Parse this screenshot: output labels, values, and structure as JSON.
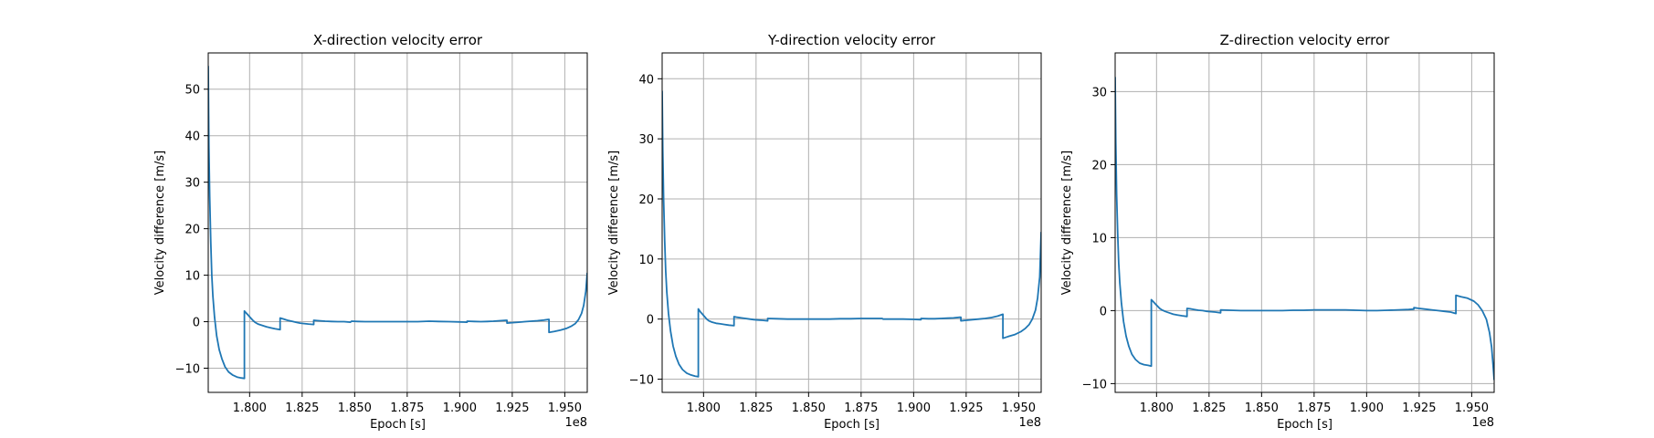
{
  "colors": {
    "line": "#1f77b4",
    "grid": "#b0b0b0",
    "axes": "#000000"
  },
  "chart_data": [
    {
      "type": "line",
      "title": "X-direction velocity error",
      "xlabel": "Epoch [s]",
      "ylabel": "Velocity difference [m/s]",
      "x_multiplier_label": "1e8",
      "grid": true,
      "xlim": [
        1.7803,
        1.9607
      ],
      "ylim": [
        -15.2,
        57.8
      ],
      "xticks": [
        1.8,
        1.825,
        1.85,
        1.875,
        1.9,
        1.925,
        1.95
      ],
      "xtick_labels": [
        "1.800",
        "1.825",
        "1.850",
        "1.875",
        "1.900",
        "1.925",
        "1.950"
      ],
      "yticks": [
        -10,
        0,
        10,
        20,
        30,
        40,
        50
      ],
      "ytick_labels": [
        "−10",
        "0",
        "10",
        "20",
        "30",
        "40",
        "50"
      ],
      "series": [
        {
          "x": [
            1.7803,
            1.7806,
            1.781,
            1.7815,
            1.782,
            1.7825,
            1.7833,
            1.7843,
            1.7855,
            1.7868,
            1.7883,
            1.79,
            1.792,
            1.794,
            1.796,
            1.7975,
            1.7975,
            1.7985,
            1.7995,
            1.8005,
            1.8015,
            1.8025,
            1.804,
            1.806,
            1.808,
            1.81,
            1.812,
            1.8145,
            1.8145,
            1.816,
            1.818,
            1.82,
            1.822,
            1.824,
            1.826,
            1.828,
            1.8305,
            1.8305,
            1.833,
            1.836,
            1.839,
            1.842,
            1.845,
            1.848,
            1.8485,
            1.8515,
            1.855,
            1.86,
            1.865,
            1.87,
            1.875,
            1.88,
            1.8855,
            1.8855,
            1.89,
            1.895,
            1.9,
            1.9035,
            1.9035,
            1.907,
            1.91,
            1.913,
            1.916,
            1.919,
            1.922,
            1.9225,
            1.9225,
            1.925,
            1.928,
            1.931,
            1.934,
            1.937,
            1.94,
            1.9425,
            1.9425,
            1.945,
            1.948,
            1.951,
            1.953,
            1.955,
            1.9565,
            1.958,
            1.959,
            1.96,
            1.9607
          ],
          "y": [
            55,
            38,
            27,
            17,
            10,
            5.5,
            1,
            -3,
            -6,
            -8,
            -9.7,
            -10.8,
            -11.5,
            -11.9,
            -12.1,
            -12.2,
            2.3,
            1.8,
            1.3,
            0.8,
            0.3,
            -0.1,
            -0.5,
            -0.8,
            -1.1,
            -1.3,
            -1.5,
            -1.7,
            0.8,
            0.6,
            0.3,
            0.1,
            -0.1,
            -0.3,
            -0.4,
            -0.5,
            -0.6,
            0.3,
            0.2,
            0.1,
            0.05,
            0,
            0,
            -0.1,
            0.1,
            0.05,
            0,
            0,
            0,
            0,
            0,
            0,
            0.1,
            0.1,
            0.05,
            0,
            -0.05,
            -0.1,
            0.1,
            0.05,
            0,
            0.05,
            0.1,
            0.2,
            0.3,
            0.3,
            -0.3,
            -0.2,
            -0.1,
            0,
            0.1,
            0.2,
            0.35,
            0.5,
            -2.3,
            -2.1,
            -1.8,
            -1.4,
            -1,
            -0.4,
            0.4,
            1.8,
            3.5,
            6.5,
            10.5
          ]
        }
      ]
    },
    {
      "type": "line",
      "title": "Y-direction velocity error",
      "xlabel": "Epoch [s]",
      "ylabel": "Velocity difference [m/s]",
      "x_multiplier_label": "1e8",
      "grid": true,
      "xlim": [
        1.7803,
        1.9607
      ],
      "ylim": [
        -12.2,
        44.3
      ],
      "xticks": [
        1.8,
        1.825,
        1.85,
        1.875,
        1.9,
        1.925,
        1.95
      ],
      "xtick_labels": [
        "1.800",
        "1.825",
        "1.850",
        "1.875",
        "1.900",
        "1.925",
        "1.950"
      ],
      "yticks": [
        -10,
        0,
        10,
        20,
        30,
        40
      ],
      "ytick_labels": [
        "−10",
        "0",
        "10",
        "20",
        "30",
        "40"
      ],
      "series": [
        {
          "x": [
            1.7803,
            1.7806,
            1.781,
            1.7815,
            1.782,
            1.7825,
            1.7833,
            1.7843,
            1.7855,
            1.7868,
            1.7883,
            1.79,
            1.792,
            1.794,
            1.796,
            1.7975,
            1.7975,
            1.7985,
            1.7995,
            1.8005,
            1.8015,
            1.8025,
            1.804,
            1.806,
            1.808,
            1.81,
            1.812,
            1.8145,
            1.8145,
            1.816,
            1.818,
            1.82,
            1.822,
            1.824,
            1.826,
            1.828,
            1.8305,
            1.8305,
            1.835,
            1.84,
            1.845,
            1.85,
            1.855,
            1.86,
            1.865,
            1.87,
            1.875,
            1.88,
            1.885,
            1.8855,
            1.89,
            1.895,
            1.9,
            1.9035,
            1.9035,
            1.907,
            1.91,
            1.913,
            1.916,
            1.919,
            1.922,
            1.9225,
            1.9225,
            1.925,
            1.928,
            1.931,
            1.934,
            1.937,
            1.94,
            1.9425,
            1.9425,
            1.945,
            1.948,
            1.951,
            1.953,
            1.955,
            1.9565,
            1.958,
            1.959,
            1.96,
            1.9607
          ],
          "y": [
            38,
            28,
            20,
            13,
            8,
            4.5,
            1,
            -2,
            -4.5,
            -6.2,
            -7.5,
            -8.4,
            -9,
            -9.3,
            -9.5,
            -9.6,
            1.7,
            1.2,
            0.8,
            0.4,
            0,
            -0.3,
            -0.5,
            -0.7,
            -0.8,
            -0.9,
            -1,
            -1.1,
            0.4,
            0.3,
            0.2,
            0.1,
            0,
            -0.1,
            -0.15,
            -0.2,
            -0.3,
            0.1,
            0.05,
            0,
            0,
            0,
            0,
            0,
            0.05,
            0.05,
            0.1,
            0.1,
            0.1,
            0,
            0,
            0,
            -0.05,
            -0.1,
            0.1,
            0.05,
            0.05,
            0.1,
            0.15,
            0.2,
            0.3,
            0.3,
            -0.3,
            -0.2,
            -0.1,
            0,
            0.1,
            0.25,
            0.5,
            0.8,
            -3.2,
            -2.9,
            -2.6,
            -2.1,
            -1.6,
            -0.9,
            0,
            1.5,
            3.5,
            7,
            14.5
          ]
        }
      ]
    },
    {
      "type": "line",
      "title": "Z-direction velocity error",
      "xlabel": "Epoch [s]",
      "ylabel": "Velocity difference [m/s]",
      "x_multiplier_label": "1e8",
      "grid": true,
      "xlim": [
        1.7803,
        1.9607
      ],
      "ylim": [
        -11.2,
        35.3
      ],
      "xticks": [
        1.8,
        1.825,
        1.85,
        1.875,
        1.9,
        1.925,
        1.95
      ],
      "xtick_labels": [
        "1.800",
        "1.825",
        "1.850",
        "1.875",
        "1.900",
        "1.925",
        "1.950"
      ],
      "yticks": [
        -10,
        0,
        10,
        20,
        30
      ],
      "ytick_labels": [
        "−10",
        "0",
        "10",
        "20",
        "30"
      ],
      "series": [
        {
          "x": [
            1.7803,
            1.7806,
            1.781,
            1.7815,
            1.782,
            1.7825,
            1.7833,
            1.7843,
            1.7855,
            1.7868,
            1.7883,
            1.79,
            1.792,
            1.794,
            1.796,
            1.7975,
            1.7975,
            1.7985,
            1.7995,
            1.8005,
            1.8015,
            1.8025,
            1.804,
            1.806,
            1.808,
            1.81,
            1.812,
            1.8145,
            1.8145,
            1.816,
            1.818,
            1.82,
            1.822,
            1.824,
            1.826,
            1.828,
            1.8305,
            1.8305,
            1.835,
            1.84,
            1.845,
            1.85,
            1.855,
            1.86,
            1.865,
            1.87,
            1.875,
            1.88,
            1.885,
            1.89,
            1.895,
            1.9,
            1.905,
            1.91,
            1.915,
            1.92,
            1.9225,
            1.9225,
            1.925,
            1.928,
            1.931,
            1.934,
            1.937,
            1.94,
            1.9425,
            1.9425,
            1.945,
            1.948,
            1.951,
            1.953,
            1.955,
            1.957,
            1.9585,
            1.9595,
            1.9602,
            1.9607
          ],
          "y": [
            32,
            23,
            16,
            10.5,
            6.5,
            3.8,
            1,
            -1.5,
            -3.5,
            -4.9,
            -6,
            -6.7,
            -7.2,
            -7.4,
            -7.5,
            -7.6,
            1.5,
            1.2,
            0.9,
            0.6,
            0.3,
            0.1,
            -0.1,
            -0.3,
            -0.5,
            -0.6,
            -0.7,
            -0.8,
            0.3,
            0.25,
            0.15,
            0.05,
            0,
            -0.1,
            -0.15,
            -0.2,
            -0.3,
            0.1,
            0.05,
            0,
            0,
            0,
            0,
            0,
            0.05,
            0.05,
            0.1,
            0.1,
            0.1,
            0.1,
            0.05,
            0,
            0,
            0.05,
            0.1,
            0.15,
            0.2,
            0.4,
            0.3,
            0.2,
            0.1,
            0,
            -0.1,
            -0.2,
            -0.4,
            2.1,
            1.9,
            1.7,
            1.3,
            0.8,
            0,
            -1.2,
            -3,
            -5,
            -7.5,
            -9.5
          ]
        }
      ]
    }
  ]
}
